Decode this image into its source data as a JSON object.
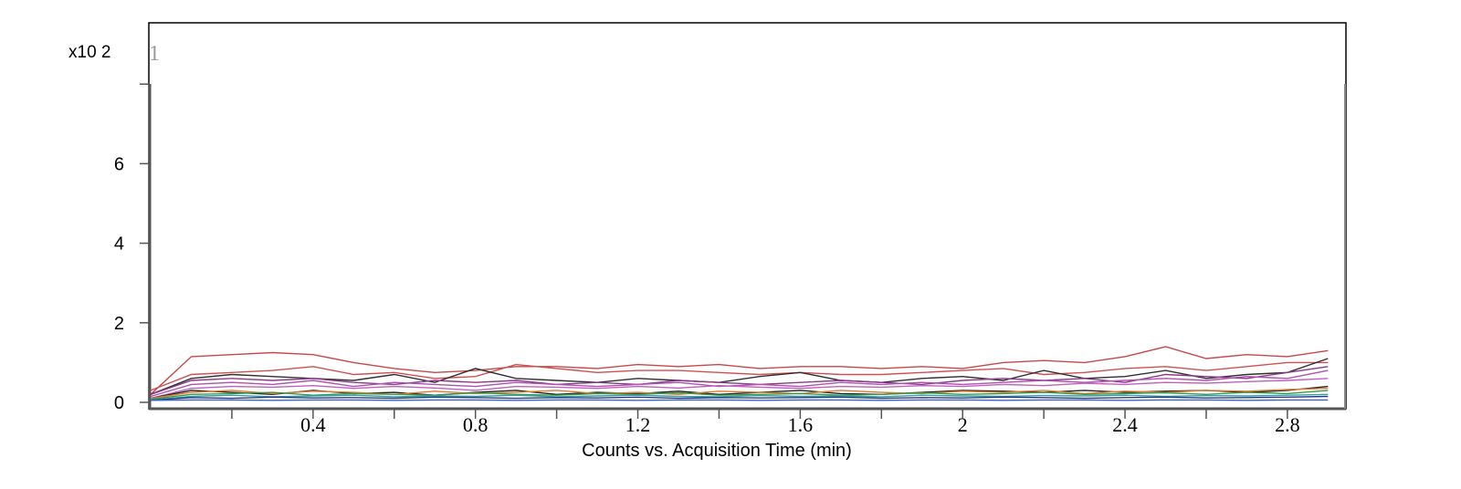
{
  "chart_data": {
    "type": "line",
    "title": "",
    "panel_label": "1",
    "y_multiplier": "x10 2",
    "xlabel": "Counts vs. Acquisition Time (min)",
    "ylabel": "",
    "xlim": [
      -0.01,
      2.945
    ],
    "ylim": [
      0,
      8.77
    ],
    "x_ticks_major": [
      0.4,
      0.8,
      1.2,
      1.6,
      2,
      2.4,
      2.8
    ],
    "x_tick_labels": [
      "0.4",
      "0.8",
      "1.2",
      "1.6",
      "2",
      "2.4",
      "2.8"
    ],
    "x_ticks_minor": [
      0.2,
      0.6,
      1.0,
      1.4,
      1.8,
      2.2,
      2.6
    ],
    "y_ticks": [
      0,
      2,
      4,
      6,
      8
    ],
    "y_tick_labels": [
      "0",
      "2",
      "4",
      "6",
      ""
    ],
    "grid": false,
    "legend": "none",
    "x": [
      0,
      0.1,
      0.2,
      0.3,
      0.4,
      0.5,
      0.6,
      0.7,
      0.8,
      0.9,
      1.0,
      1.1,
      1.2,
      1.3,
      1.4,
      1.5,
      1.6,
      1.7,
      1.8,
      1.9,
      2.0,
      2.1,
      2.2,
      2.3,
      2.4,
      2.5,
      2.6,
      2.7,
      2.8,
      2.9
    ],
    "series": [
      {
        "color": "#c84848",
        "values": [
          0.2,
          1.15,
          1.2,
          1.25,
          1.2,
          1.0,
          0.85,
          0.75,
          0.8,
          0.9,
          0.9,
          0.85,
          0.95,
          0.9,
          0.95,
          0.85,
          0.9,
          0.9,
          0.85,
          0.9,
          0.85,
          1.0,
          1.05,
          1.0,
          1.15,
          1.4,
          1.1,
          1.2,
          1.15,
          1.3
        ]
      },
      {
        "color": "#d05050",
        "values": [
          0.3,
          0.7,
          0.75,
          0.8,
          0.9,
          0.7,
          0.75,
          0.6,
          0.65,
          0.95,
          0.85,
          0.75,
          0.8,
          0.8,
          0.75,
          0.7,
          0.75,
          0.7,
          0.7,
          0.75,
          0.8,
          0.85,
          0.7,
          0.75,
          0.85,
          0.9,
          0.8,
          0.9,
          1.0,
          1.0
        ]
      },
      {
        "color": "#303030",
        "values": [
          0.2,
          0.6,
          0.7,
          0.65,
          0.6,
          0.55,
          0.7,
          0.5,
          0.85,
          0.6,
          0.55,
          0.5,
          0.6,
          0.55,
          0.5,
          0.65,
          0.75,
          0.55,
          0.5,
          0.6,
          0.65,
          0.55,
          0.8,
          0.6,
          0.65,
          0.8,
          0.6,
          0.7,
          0.75,
          1.1
        ]
      },
      {
        "color": "#8a3a8a",
        "values": [
          0.2,
          0.55,
          0.6,
          0.55,
          0.6,
          0.5,
          0.45,
          0.55,
          0.5,
          0.55,
          0.45,
          0.5,
          0.45,
          0.55,
          0.5,
          0.45,
          0.5,
          0.55,
          0.5,
          0.45,
          0.55,
          0.6,
          0.55,
          0.6,
          0.5,
          0.7,
          0.65,
          0.6,
          0.75,
          0.9
        ]
      },
      {
        "color": "#b050b0",
        "values": [
          0.15,
          0.45,
          0.5,
          0.45,
          0.55,
          0.4,
          0.5,
          0.45,
          0.4,
          0.5,
          0.45,
          0.4,
          0.45,
          0.5,
          0.4,
          0.45,
          0.4,
          0.5,
          0.45,
          0.5,
          0.45,
          0.5,
          0.55,
          0.5,
          0.55,
          0.6,
          0.55,
          0.65,
          0.6,
          0.8
        ]
      },
      {
        "color": "#c060c0",
        "values": [
          0.1,
          0.35,
          0.4,
          0.38,
          0.42,
          0.35,
          0.4,
          0.36,
          0.3,
          0.4,
          0.38,
          0.35,
          0.4,
          0.36,
          0.42,
          0.38,
          0.35,
          0.4,
          0.38,
          0.42,
          0.4,
          0.45,
          0.42,
          0.48,
          0.45,
          0.5,
          0.48,
          0.52,
          0.55,
          0.6
        ]
      },
      {
        "color": "#222222",
        "values": [
          0.1,
          0.3,
          0.25,
          0.2,
          0.3,
          0.22,
          0.25,
          0.18,
          0.25,
          0.3,
          0.2,
          0.25,
          0.22,
          0.28,
          0.2,
          0.25,
          0.3,
          0.22,
          0.2,
          0.25,
          0.3,
          0.28,
          0.25,
          0.3,
          0.25,
          0.28,
          0.3,
          0.25,
          0.3,
          0.4
        ]
      },
      {
        "color": "#e07a30",
        "values": [
          0.1,
          0.25,
          0.3,
          0.22,
          0.28,
          0.25,
          0.2,
          0.28,
          0.22,
          0.25,
          0.3,
          0.22,
          0.25,
          0.2,
          0.28,
          0.25,
          0.22,
          0.3,
          0.25,
          0.22,
          0.28,
          0.25,
          0.3,
          0.22,
          0.28,
          0.25,
          0.3,
          0.28,
          0.32,
          0.35
        ]
      },
      {
        "color": "#3a9a4a",
        "values": [
          0.08,
          0.2,
          0.22,
          0.25,
          0.18,
          0.22,
          0.2,
          0.18,
          0.24,
          0.2,
          0.18,
          0.22,
          0.2,
          0.24,
          0.18,
          0.2,
          0.22,
          0.18,
          0.2,
          0.24,
          0.2,
          0.22,
          0.25,
          0.2,
          0.22,
          0.24,
          0.2,
          0.25,
          0.22,
          0.3
        ]
      },
      {
        "color": "#30a0a8",
        "values": [
          0.06,
          0.15,
          0.18,
          0.14,
          0.16,
          0.18,
          0.14,
          0.16,
          0.15,
          0.18,
          0.14,
          0.16,
          0.18,
          0.15,
          0.14,
          0.17,
          0.15,
          0.16,
          0.14,
          0.18,
          0.16,
          0.15,
          0.17,
          0.16,
          0.18,
          0.15,
          0.17,
          0.16,
          0.18,
          0.2
        ]
      },
      {
        "color": "#2a3a80",
        "values": [
          0.05,
          0.12,
          0.1,
          0.13,
          0.11,
          0.12,
          0.1,
          0.13,
          0.12,
          0.1,
          0.12,
          0.11,
          0.13,
          0.1,
          0.12,
          0.11,
          0.12,
          0.13,
          0.1,
          0.12,
          0.11,
          0.13,
          0.12,
          0.1,
          0.12,
          0.13,
          0.11,
          0.12,
          0.13,
          0.15
        ]
      },
      {
        "color": "#4060c0",
        "values": [
          0.05,
          0.06,
          0.06,
          0.05,
          0.06,
          0.06,
          0.05,
          0.06,
          0.06,
          0.05,
          0.06,
          0.06,
          0.05,
          0.06,
          0.06,
          0.05,
          0.06,
          0.06,
          0.05,
          0.06,
          0.06,
          0.05,
          0.06,
          0.06,
          0.05,
          0.06,
          0.06,
          0.05,
          0.06,
          0.06
        ]
      }
    ]
  }
}
